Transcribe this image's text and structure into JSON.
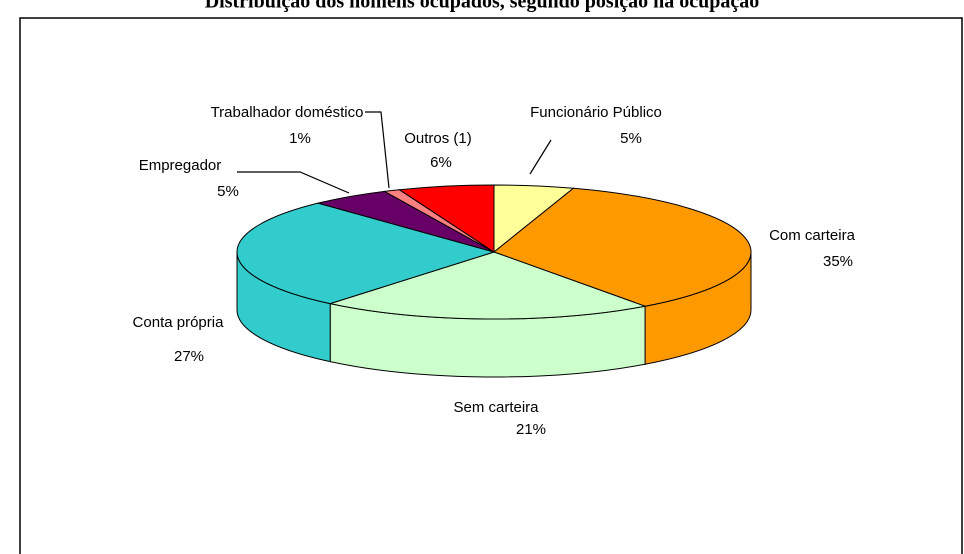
{
  "chart_data": {
    "type": "pie3d",
    "title": "Distribuição dos homens ocupados, segundo posição na ocupação",
    "categories": [
      "Funcionário Público",
      "Com carteira",
      "Sem carteira",
      "Conta própria",
      "Empregador",
      "Trabalhador doméstico",
      "Outros (1)"
    ],
    "values": [
      5,
      35,
      21,
      27,
      5,
      1,
      6
    ],
    "value_labels": [
      "5%",
      "35%",
      "21%",
      "27%",
      "5%",
      "1%",
      "6%"
    ],
    "colors": [
      "#ffff99",
      "#ff9900",
      "#ccffcc",
      "#33cccc",
      "#660066",
      "#ff8080",
      "#ff0000"
    ]
  }
}
